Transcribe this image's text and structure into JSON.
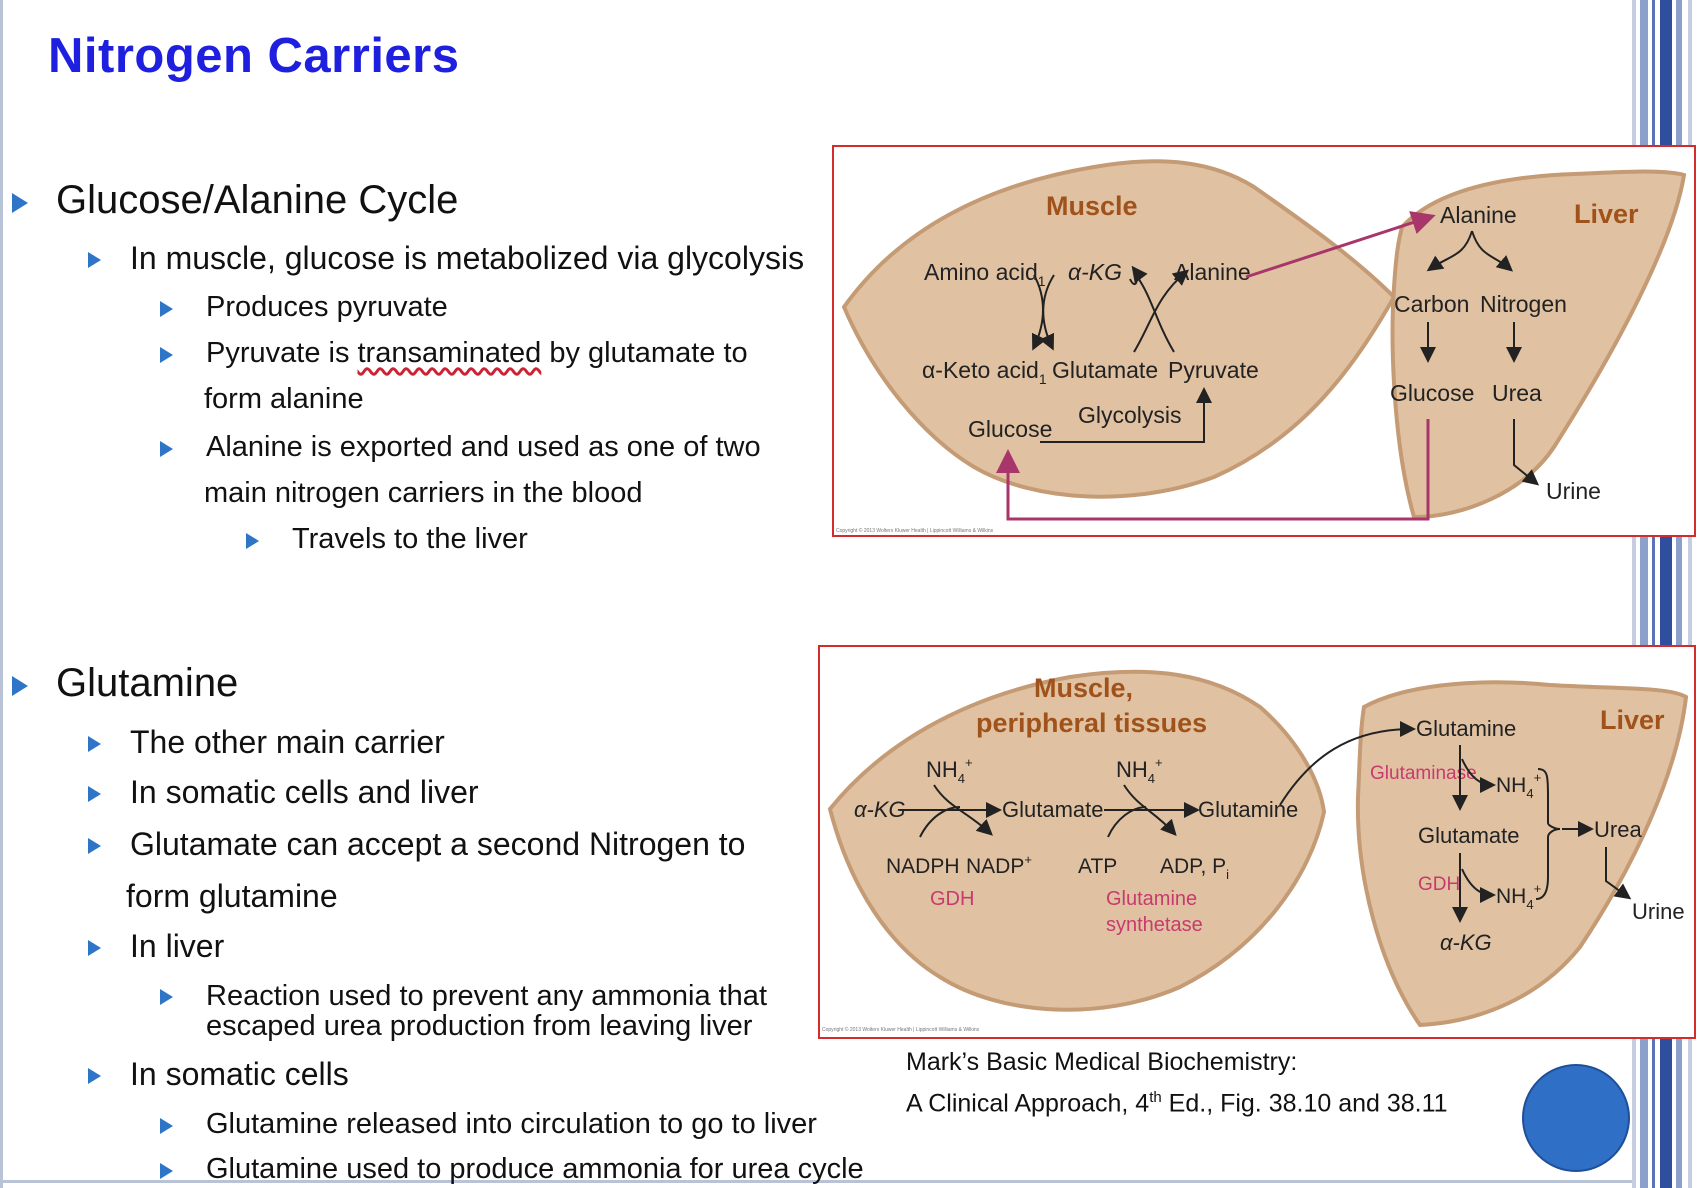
{
  "slide": {
    "title": "Nitrogen Carriers"
  },
  "sections": [
    {
      "heading": "Glucose/Alanine Cycle",
      "items": [
        {
          "text": "In muscle, glucose is metabolized via glycolysis"
        },
        {
          "text": "Produces pyruvate"
        },
        {
          "text_pre": "Pyruvate is ",
          "text_underlined": "transaminated",
          "text_post": " by glutamate to",
          "text_cont": "form alanine"
        },
        {
          "text": "Alanine is exported and used as one of two",
          "text_cont": "main nitrogen carriers in the blood"
        },
        {
          "text": "Travels to the liver"
        }
      ]
    },
    {
      "heading": "Glutamine",
      "items": [
        {
          "text": "The other main carrier"
        },
        {
          "text": "In somatic cells and liver"
        },
        {
          "text": "Glutamate can accept a second Nitrogen to",
          "text_cont": "form glutamine"
        },
        {
          "text": "In liver"
        },
        {
          "text": "Reaction used to prevent any ammonia that",
          "text_cont": "escaped urea production from leaving liver"
        },
        {
          "text": "In somatic cells"
        },
        {
          "text": "Glutamine released into circulation to go to liver"
        },
        {
          "text": "Glutamine used to produce ammonia for urea cycle"
        }
      ]
    }
  ],
  "diagram1": {
    "muscle_label": "Muscle",
    "liver_label": "Liver",
    "amino_acid": "Amino acid",
    "amino_sub": "1",
    "akg": "α-KG",
    "alanine": "Alanine",
    "keto_acid": "α-Keto acid",
    "keto_sub": "1",
    "glutamate": "Glutamate",
    "pyruvate": "Pyruvate",
    "glycolysis": "Glycolysis",
    "glucose": "Glucose",
    "liver_alanine": "Alanine",
    "carbon": "Carbon",
    "nitrogen": "Nitrogen",
    "liver_glucose": "Glucose",
    "urea": "Urea",
    "urine": "Urine",
    "copyright": "Copyright © 2013 Wolters Kluwer Health | Lippincott Williams & Wilkins"
  },
  "diagram2": {
    "muscle_label_line1": "Muscle,",
    "muscle_label_line2": "peripheral tissues",
    "liver_label": "Liver",
    "akg": "α-KG",
    "nh4_1": "NH",
    "glutamate": "Glutamate",
    "nh4_2": "NH",
    "glutamine": "Glutamine",
    "nadph": "NADPH",
    "nadp": "NADP",
    "atp": "ATP",
    "adp": "ADP, P",
    "adp_sub": "i",
    "gdh": "GDH",
    "gs_line1": "Glutamine",
    "gs_line2": "synthetase",
    "liver_glutamine": "Glutamine",
    "glutaminase": "Glutaminase",
    "liver_nh4_1": "NH",
    "liver_glutamate": "Glutamate",
    "urea": "Urea",
    "liver_gdh": "GDH",
    "liver_nh4_2": "NH",
    "liver_akg": "α-KG",
    "urine": "Urine",
    "nh4_sub": "4",
    "plus": "+",
    "copyright": "Copyright © 2013 Wolters Kluwer Health | Lippincott Williams & Wilkins"
  },
  "reference": {
    "line1": "Mark’s Basic Medical Biochemistry:",
    "line2_pre": "A Clinical Approach, 4",
    "line2_sup": "th",
    "line2_post": " Ed., Fig. 38.10 and 38.11"
  },
  "colors": {
    "title": "#1f1fe0",
    "bullet": "#2e74c7",
    "organ_fill": "#e0c2a2",
    "organ_edge": "#c49b74",
    "organ_label": "#a0521b",
    "path_arrow": "#a8366b",
    "enzyme_label": "#c83a6e",
    "frame": "#d42b2b",
    "accent_circle": "#2f6fc5"
  }
}
